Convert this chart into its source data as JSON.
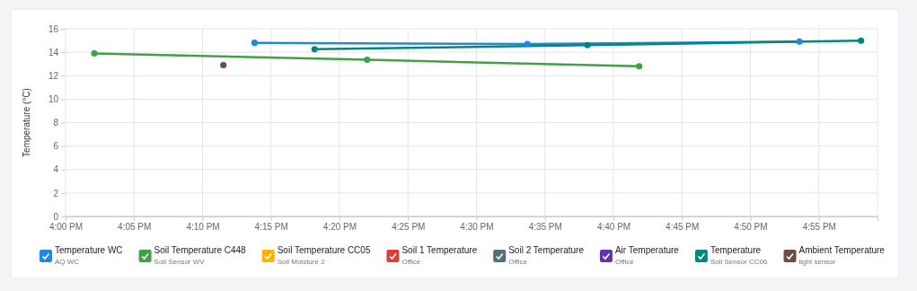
{
  "chart_data": {
    "type": "line",
    "ylabel": "Temperature (°C)",
    "xlim": [
      16,
      16.988
    ],
    "ylim": [
      0,
      16
    ],
    "xticks": [
      {
        "value": 16,
        "label": "4:00 PM"
      },
      {
        "value": 16.0833,
        "label": "4:05 PM"
      },
      {
        "value": 16.1667,
        "label": "4:10 PM"
      },
      {
        "value": 16.25,
        "label": "4:15 PM"
      },
      {
        "value": 16.3333,
        "label": "4:20 PM"
      },
      {
        "value": 16.4167,
        "label": "4:25 PM"
      },
      {
        "value": 16.5,
        "label": "4:30 PM"
      },
      {
        "value": 16.5833,
        "label": "4:35 PM"
      },
      {
        "value": 16.6667,
        "label": "4:40 PM"
      },
      {
        "value": 16.75,
        "label": "4:45 PM"
      },
      {
        "value": 16.8333,
        "label": "4:50 PM"
      },
      {
        "value": 16.9167,
        "label": "4:55 PM"
      }
    ],
    "yticks": [
      0,
      2,
      4,
      6,
      8,
      10,
      12,
      14,
      16
    ],
    "grid": true,
    "legend": "bottom",
    "marker": "circle",
    "line_style": "solid",
    "series": [
      {
        "name": "Temperature WC\nAQ WC",
        "color": "#1e88e5",
        "x": [
          16.23,
          16.562,
          16.893
        ],
        "values": [
          14.8,
          14.7,
          14.9
        ]
      },
      {
        "name": "Soil Temperature C448\nSoil Sensor WV",
        "color": "#43a047",
        "x": [
          16.035,
          16.367,
          16.698
        ],
        "values": [
          13.9,
          13.35,
          12.8
        ]
      },
      {
        "name": "Soil Temperature CC05\nSoil Moisture 2",
        "color": "#ffb300"
      },
      {
        "name": "Soil 1 Temperature\nOffice",
        "color": "#e53935"
      },
      {
        "name": "Soil 2 Temperature\nOffice",
        "color": "#546e7a"
      },
      {
        "name": "Air Temperature\nOffice",
        "color": "#5e35b1"
      },
      {
        "name": "Temperature\nSoil Sensor CC06",
        "color": "#00897b",
        "x": [
          16.303,
          16.635,
          16.968
        ],
        "values": [
          14.25,
          14.6,
          14.98
        ]
      },
      {
        "name": "Ambient Temperature\nlight sensor",
        "color": "#6d4c41",
        "x": [
          16.192
        ],
        "values": [
          12.9
        ]
      }
    ]
  }
}
